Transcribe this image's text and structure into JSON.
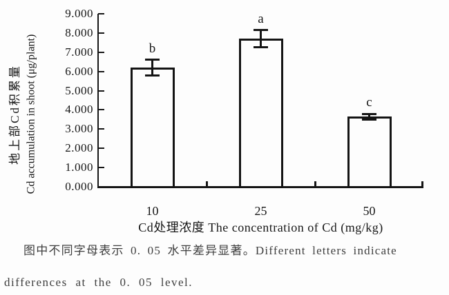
{
  "figure": {
    "caption_line1": "图中不同字母表示 0. 05 水平差异显著。Different letters indicate",
    "caption_line2": "differences at the 0. 05 level."
  },
  "chart_data": {
    "type": "bar",
    "title": "",
    "categories": [
      "10",
      "25",
      "50"
    ],
    "values": [
      6.2,
      7.7,
      3.65
    ],
    "errors": [
      0.4,
      0.45,
      0.15
    ],
    "sig_letters": [
      "b",
      "a",
      "c"
    ],
    "ylim": [
      0,
      9
    ],
    "ytick_step": 1,
    "ytick_decimals": 3,
    "xlabel": "Cd处理浓度 The concentration of Cd (mg/kg)",
    "ylabel_line1": "地上部Cd积累量",
    "ylabel_line2": "Cd accumulation in shoot (μg/plant)",
    "legend": "none",
    "grid": false,
    "bar_fill": "#fdfdfd",
    "bar_border_color": "#141414",
    "axis_color": "#161616",
    "text_color": "#161616",
    "caption_color": "#3e3e3e"
  }
}
